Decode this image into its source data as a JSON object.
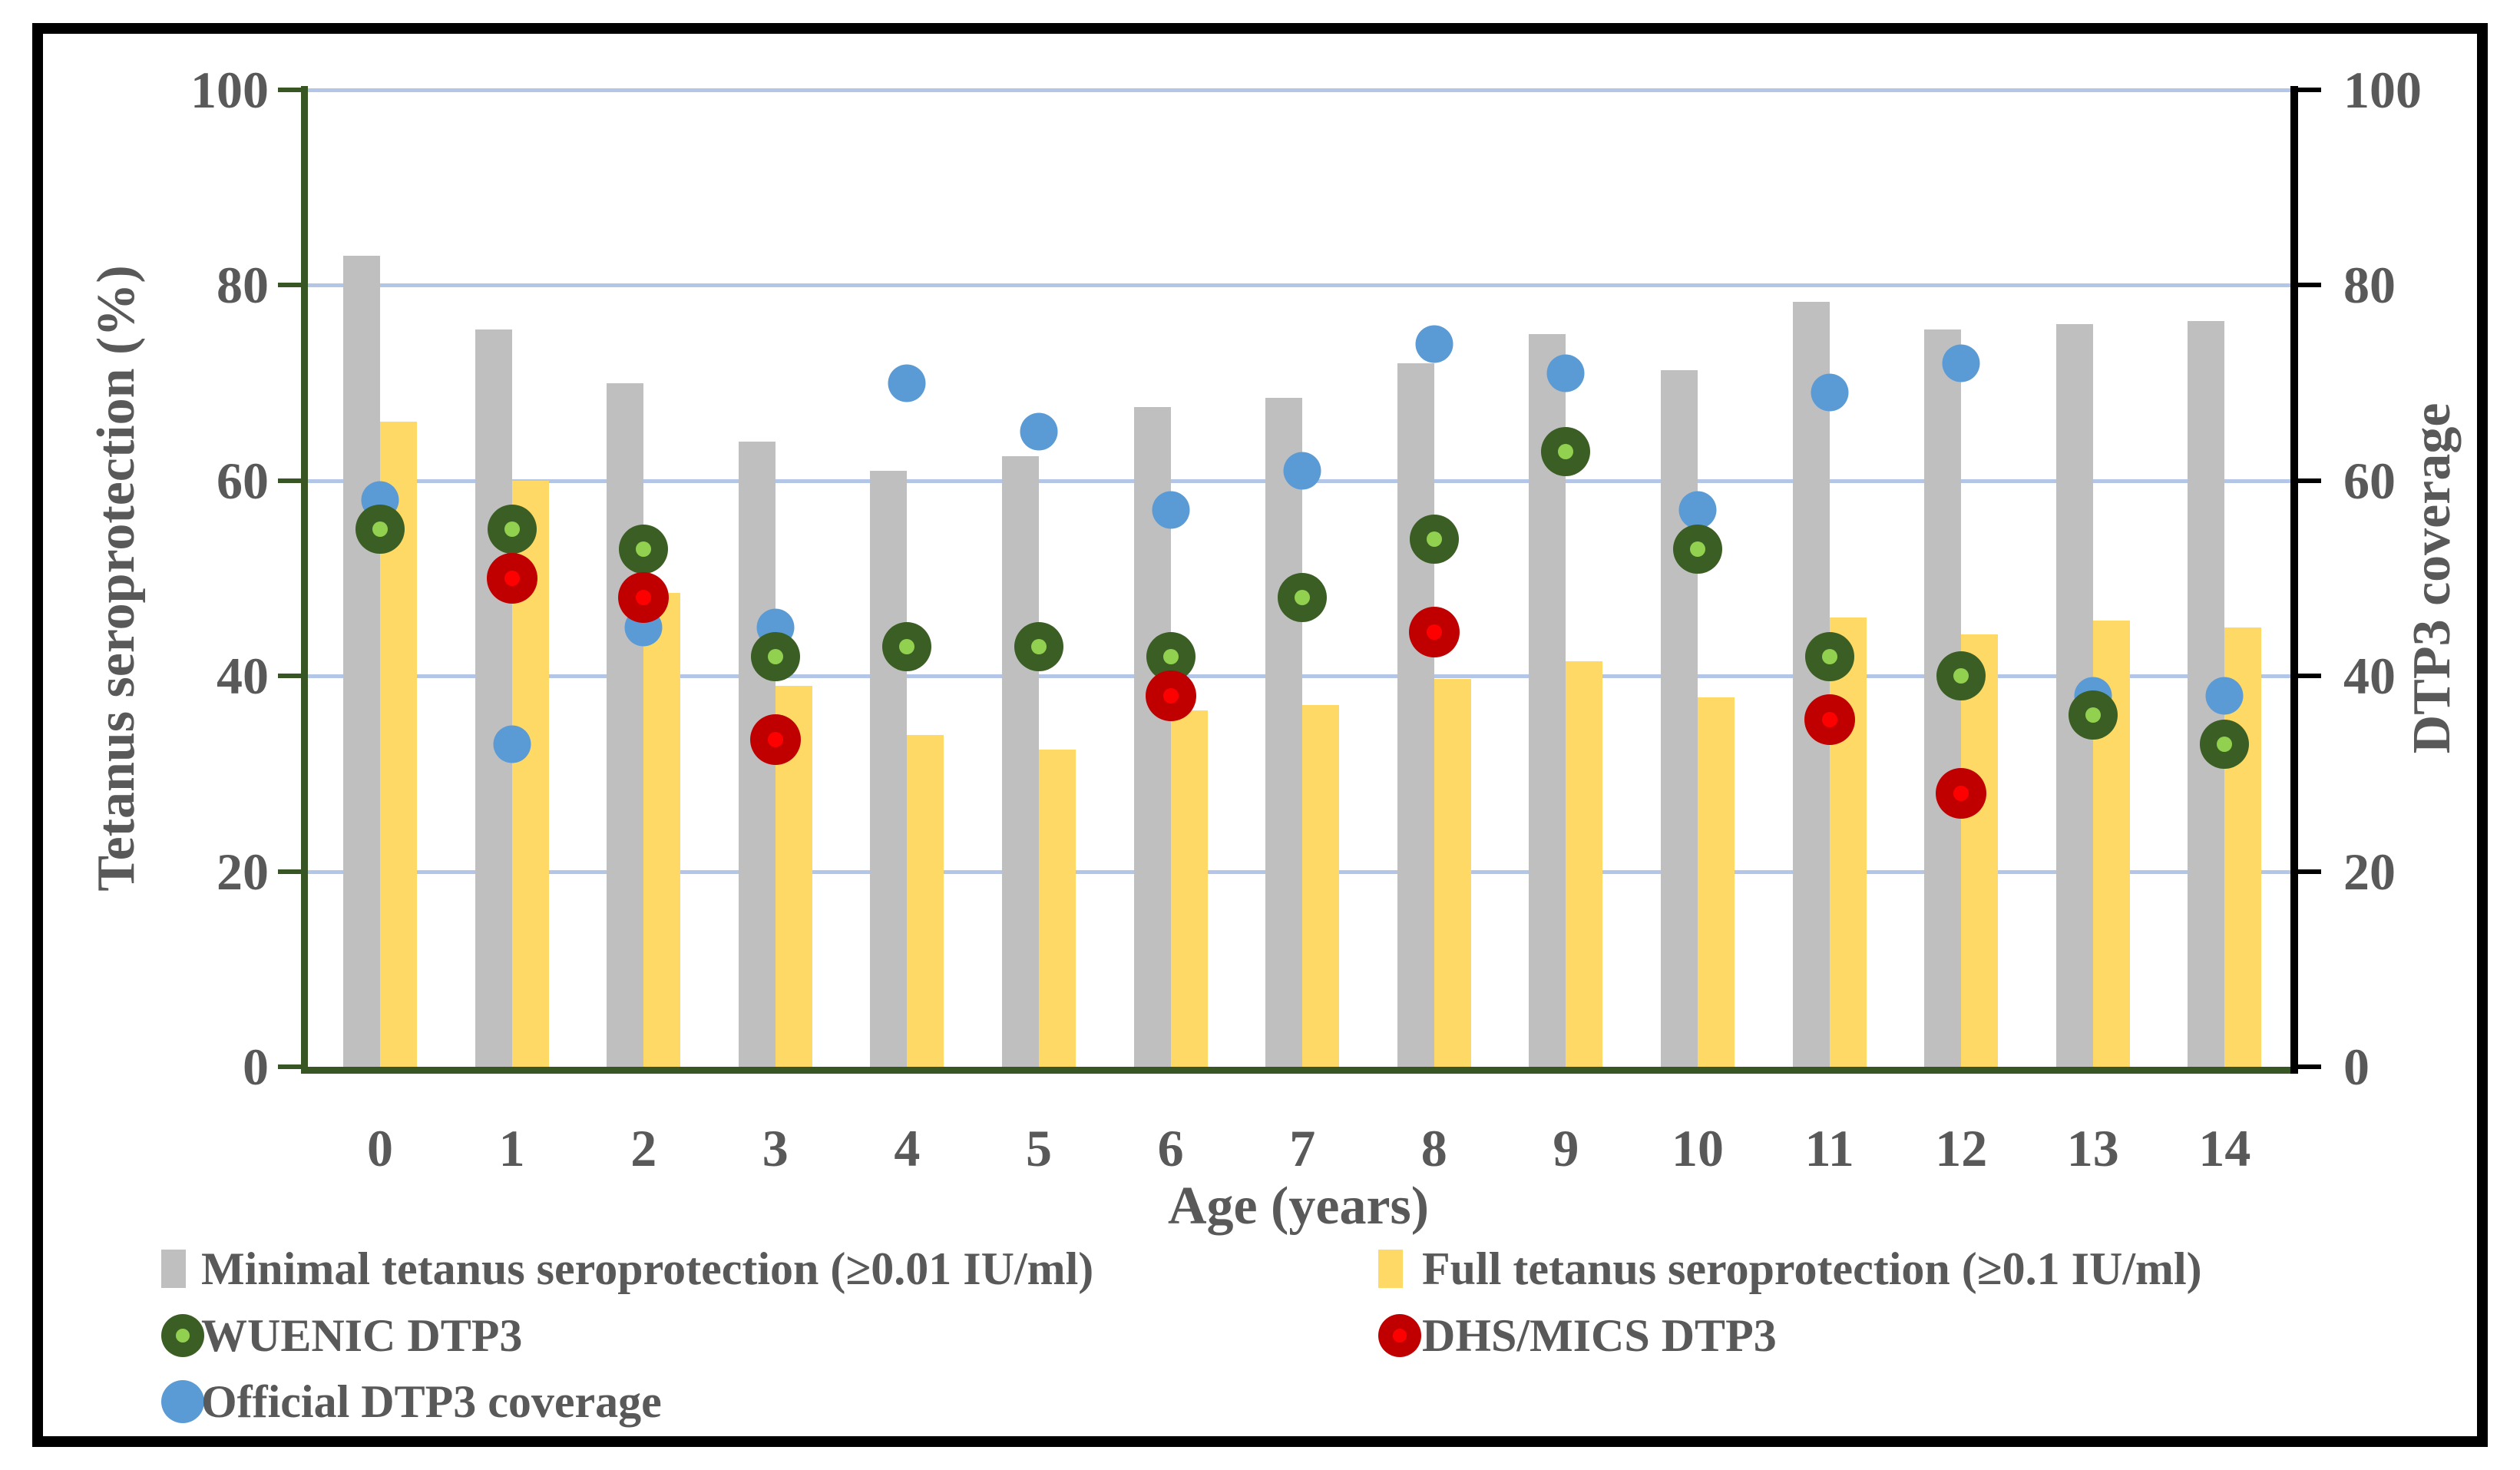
{
  "chart_data": {
    "type": "bar",
    "subtype": "combo-bar-scatter",
    "categories": [
      "0",
      "1",
      "2",
      "3",
      "4",
      "5",
      "6",
      "7",
      "8",
      "9",
      "10",
      "11",
      "12",
      "13",
      "14"
    ],
    "xlabel": "Age (years)",
    "ylabel_left": "Tetanus seroprotection (%)",
    "ylabel_right": "DTP3 coverage",
    "ylim": [
      0,
      100
    ],
    "yticks": [
      "0",
      "20",
      "40",
      "60",
      "80",
      "100"
    ],
    "grid": "horizontal",
    "legend_position": "bottom",
    "series": [
      {
        "name": "Minimal tetanus seroprotection (≥0.01 IU/ml)",
        "kind": "bar",
        "color": "#bfbfbf",
        "values": [
          83,
          75.5,
          70,
          64,
          61,
          62.5,
          67.5,
          68.5,
          72,
          75,
          71.3,
          78.3,
          75.5,
          76,
          76.3
        ]
      },
      {
        "name": "Full tetanus seroprotection (≥0.1 IU/ml)",
        "kind": "bar",
        "color": "#ffd966",
        "values": [
          66,
          60,
          48.5,
          39,
          34,
          32.5,
          36.5,
          37,
          39.7,
          41.5,
          37.8,
          46,
          44.3,
          45.7,
          45
        ]
      },
      {
        "name": "Official DTP3 coverage",
        "kind": "scatter",
        "color": "#5b9bd5",
        "dot_color": null,
        "size": 49,
        "values": [
          58,
          33,
          45,
          45,
          70,
          65,
          57,
          61,
          74,
          71,
          57,
          69,
          72,
          38,
          38
        ]
      },
      {
        "name": "WUENIC DTP3",
        "kind": "scatter",
        "color": "#3a5e23",
        "dot_color": "#92d050",
        "size": 64,
        "values": [
          55,
          55,
          53,
          42,
          43,
          43,
          42,
          48,
          54,
          63,
          53,
          42,
          40,
          36,
          33
        ]
      },
      {
        "name": "DHS/MICS DTP3",
        "kind": "scatter",
        "color": "#c00000",
        "dot_color": "#ff0000",
        "size": 66,
        "values": [
          null,
          50,
          48,
          33.5,
          null,
          null,
          38,
          null,
          44.5,
          null,
          null,
          35.5,
          28,
          null,
          null
        ]
      }
    ]
  },
  "legend": {
    "items": [
      {
        "label": "Minimal tetanus seroprotection (≥0.01 IU/ml)",
        "swatch": "bar",
        "color": "#bfbfbf",
        "dot": null,
        "row": 0,
        "col": 0
      },
      {
        "label": "Full tetanus seroprotection (≥0.1 IU/ml)",
        "swatch": "bar",
        "color": "#ffd966",
        "dot": null,
        "row": 0,
        "col": 1
      },
      {
        "label": "WUENIC DTP3",
        "swatch": "circle",
        "color": "#3a5e23",
        "dot": "#92d050",
        "row": 1,
        "col": 0
      },
      {
        "label": "DHS/MICS DTP3",
        "swatch": "circle",
        "color": "#c00000",
        "dot": "#ff0000",
        "row": 1,
        "col": 1
      },
      {
        "label": "Official DTP3 coverage",
        "swatch": "circle",
        "color": "#5b9bd5",
        "dot": null,
        "row": 2,
        "col": 0
      }
    ]
  },
  "colors": {
    "gridline": "#b4c6e7",
    "left_spine": "#375623",
    "right_spine": "#000000",
    "text": "#595959",
    "frame": "#000000",
    "background": "#ffffff"
  }
}
